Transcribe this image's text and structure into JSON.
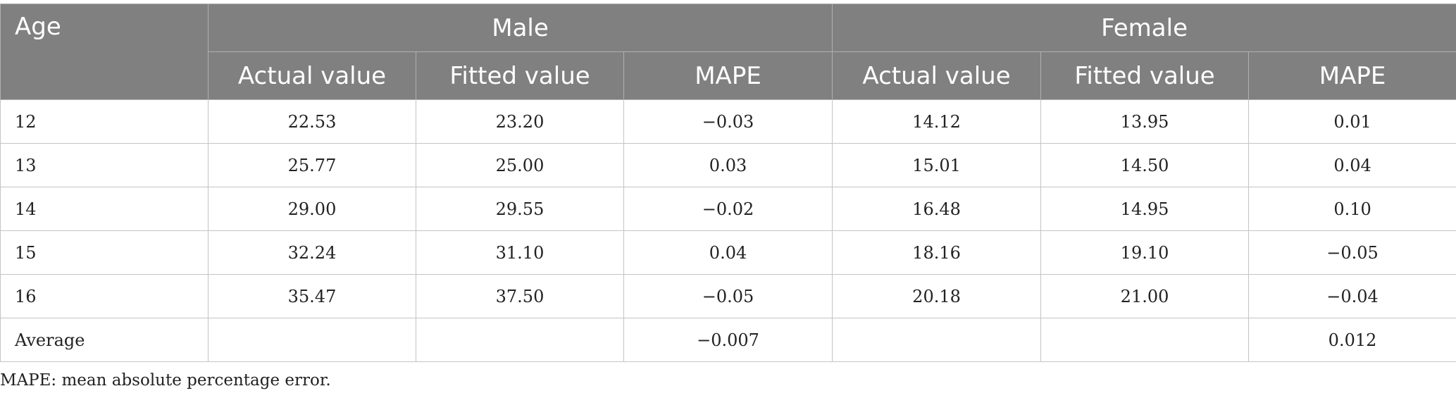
{
  "header": {
    "age": "Age",
    "groups": [
      "Male",
      "Female"
    ],
    "subheaders": [
      "Actual value",
      "Fitted value",
      "MAPE",
      "Actual value",
      "Fitted value",
      "MAPE"
    ]
  },
  "rows": [
    [
      "12",
      "22.53",
      "23.20",
      "−0.03",
      "14.12",
      "13.95",
      "0.01"
    ],
    [
      "13",
      "25.77",
      "25.00",
      "0.03",
      "15.01",
      "14.50",
      "0.04"
    ],
    [
      "14",
      "29.00",
      "29.55",
      "−0.02",
      "16.48",
      "14.95",
      "0.10"
    ],
    [
      "15",
      "32.24",
      "31.10",
      "0.04",
      "18.16",
      "19.10",
      "−0.05"
    ],
    [
      "16",
      "35.47",
      "37.50",
      "−0.05",
      "20.18",
      "21.00",
      "−0.04"
    ],
    [
      "Average",
      "",
      "",
      "−0.007",
      "",
      "",
      "0.012"
    ]
  ],
  "footnote": "MAPE: mean absolute percentage error."
}
